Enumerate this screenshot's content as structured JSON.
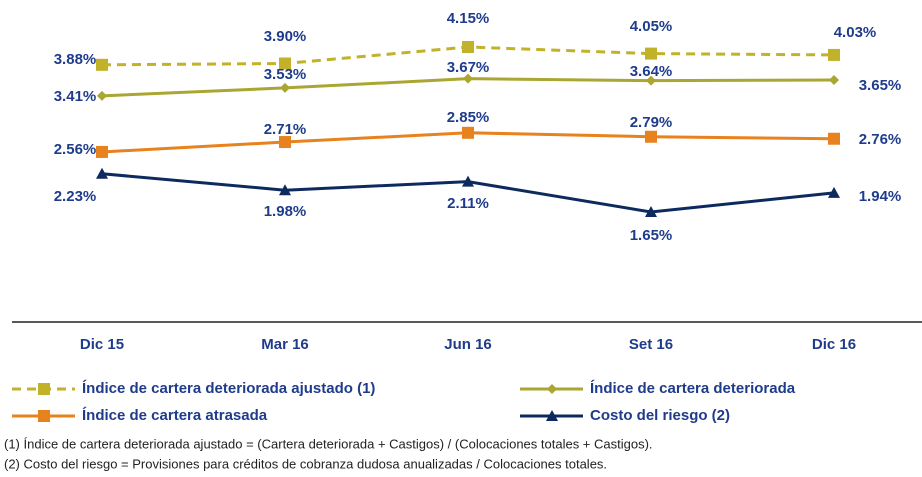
{
  "chart_data": {
    "type": "line",
    "categories": [
      "Dic 15",
      "Mar 16",
      "Jun 16",
      "Set 16",
      "Dic 16"
    ],
    "series": [
      {
        "name": "Índice de cartera deteriorada ajustado (1)",
        "color": "#c2b22a",
        "marker": "square",
        "dashed": true,
        "values": [
          3.88,
          3.9,
          4.15,
          4.05,
          4.03
        ],
        "value_labels": [
          "3.88%",
          "3.90%",
          "4.15%",
          "4.05%",
          "4.03%"
        ]
      },
      {
        "name": "Índice de cartera deteriorada",
        "color": "#aaa632",
        "marker": "diamond",
        "dashed": false,
        "values": [
          3.41,
          3.53,
          3.67,
          3.64,
          3.65
        ],
        "value_labels": [
          "3.41%",
          "3.53%",
          "3.67%",
          "3.64%",
          "3.65%"
        ]
      },
      {
        "name": "Índice de cartera atrasada",
        "color": "#e8821e",
        "marker": "square",
        "dashed": false,
        "values": [
          2.56,
          2.71,
          2.85,
          2.79,
          2.76
        ],
        "value_labels": [
          "2.56%",
          "2.71%",
          "2.85%",
          "2.79%",
          "2.76%"
        ]
      },
      {
        "name": "Costo del riesgo (2)",
        "color": "#0d2a5e",
        "marker": "triangle",
        "dashed": false,
        "values": [
          2.23,
          1.98,
          2.11,
          1.65,
          1.94
        ],
        "value_labels": [
          "2.23%",
          "1.98%",
          "2.11%",
          "1.65%",
          "1.94%"
        ]
      }
    ],
    "footnotes": [
      "(1) Índice de cartera deteriorada ajustado = (Cartera deteriorada + Castigos) / (Colocaciones totales + Castigos).",
      "(2) Costo del riesgo = Provisiones para créditos de cobranza dudosa anualizadas / Colocaciones totales."
    ]
  }
}
